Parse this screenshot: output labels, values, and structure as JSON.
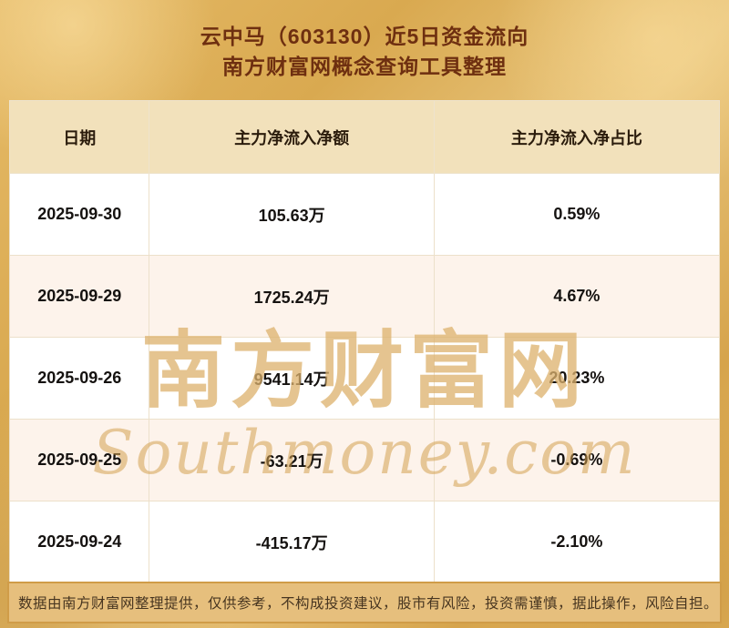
{
  "title": {
    "line1": "云中马（603130）近5日资金流向",
    "line2": "南方财富网概念查询工具整理"
  },
  "table": {
    "columns": [
      "日期",
      "主力净流入净额",
      "主力净流入净占比"
    ],
    "rows": [
      {
        "date": "2025-09-30",
        "amount": "105.63万",
        "ratio": "0.59%"
      },
      {
        "date": "2025-09-29",
        "amount": "1725.24万",
        "ratio": "4.67%"
      },
      {
        "date": "2025-09-26",
        "amount": "9541.14万",
        "ratio": "20.23%"
      },
      {
        "date": "2025-09-25",
        "amount": "-63.21万",
        "ratio": "-0.69%"
      },
      {
        "date": "2025-09-24",
        "amount": "-415.17万",
        "ratio": "-2.10%"
      }
    ]
  },
  "watermark": {
    "cn": "南方财富网",
    "en": "Southmoney.com"
  },
  "footer": {
    "text": "数据由南方财富网整理提供，仅供参考，不构成投资建议，股市有风险，投资需谨慎，据此操作，风险自担。"
  },
  "colors": {
    "background_gold": "#ddae57",
    "title_text": "#6e2f10",
    "header_bg": "#f2e1bb",
    "row_white": "#ffffff",
    "row_alt": "#fdf3eb",
    "watermark_gold": "#d3a050",
    "footer_bg": "#e6bf7d",
    "footer_border": "#d09c48",
    "footer_text": "#473520"
  },
  "chart_data": {
    "type": "table",
    "title": "云中马（603130）近5日资金流向",
    "subtitle": "南方财富网概念查询工具整理",
    "columns": [
      "日期",
      "主力净流入净额",
      "主力净流入净占比"
    ],
    "rows": [
      [
        "2025-09-30",
        "105.63万",
        "0.59%"
      ],
      [
        "2025-09-29",
        "1725.24万",
        "4.67%"
      ],
      [
        "2025-09-26",
        "9541.14万",
        "20.23%"
      ],
      [
        "2025-09-25",
        "-63.21万",
        "-0.69%"
      ],
      [
        "2025-09-24",
        "-415.17万",
        "-2.10%"
      ]
    ],
    "dates": [
      "2025-09-30",
      "2025-09-29",
      "2025-09-26",
      "2025-09-25",
      "2025-09-24"
    ],
    "main_net_inflow_wan": [
      105.63,
      1725.24,
      9541.14,
      -63.21,
      -415.17
    ],
    "main_net_inflow_pct": [
      0.59,
      4.67,
      20.23,
      -0.69,
      -2.1
    ]
  }
}
